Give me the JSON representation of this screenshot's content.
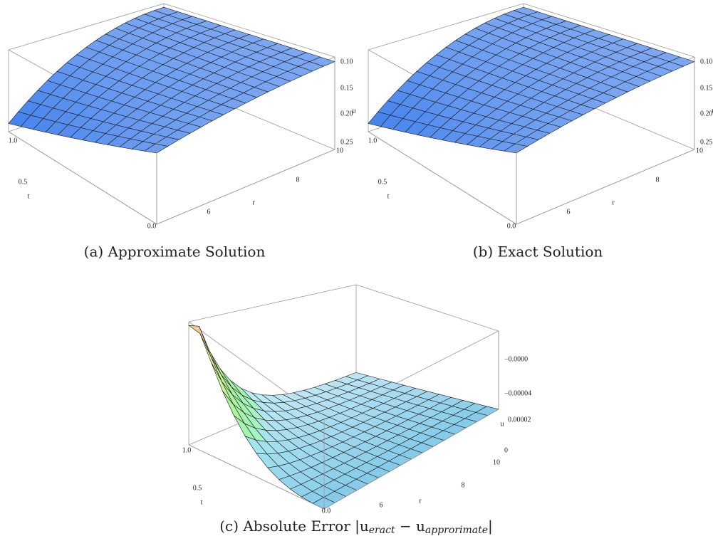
{
  "panels": [
    {
      "caption": "(a) Approximate Solution",
      "u_label": "u",
      "u_ticks": [
        "0.10",
        "0.15",
        "0.20",
        "0.25"
      ],
      "t_label": "t",
      "t_ticks": [
        "1.0",
        "0.5",
        "0.0"
      ],
      "r_label": "r",
      "r_ticks": [
        "10",
        "8",
        "6"
      ]
    },
    {
      "caption": "(b) Exact Solution",
      "u_label": "u",
      "u_ticks": [
        "0.10",
        "0.15",
        "0.20",
        "0.25"
      ],
      "t_label": "t",
      "t_ticks": [
        "1.0",
        "0.5",
        "0.0"
      ],
      "r_label": "r",
      "r_ticks": [
        "10",
        "8",
        "6"
      ]
    },
    {
      "caption": "(c) Absolute Error |u",
      "caption_sub1": "eract",
      "caption_mid": " − u",
      "caption_sub2": "approrimate",
      "caption_end": "|",
      "u_label": "u",
      "u_ticks": [
        "−0.0000",
        "−0.00004",
        "0.00002",
        "0"
      ],
      "t_label": "t",
      "t_ticks": [
        "1.0",
        "0.5",
        "0.0"
      ],
      "r_label": "r",
      "r_ticks": [
        "10",
        "8",
        "6"
      ]
    }
  ]
}
